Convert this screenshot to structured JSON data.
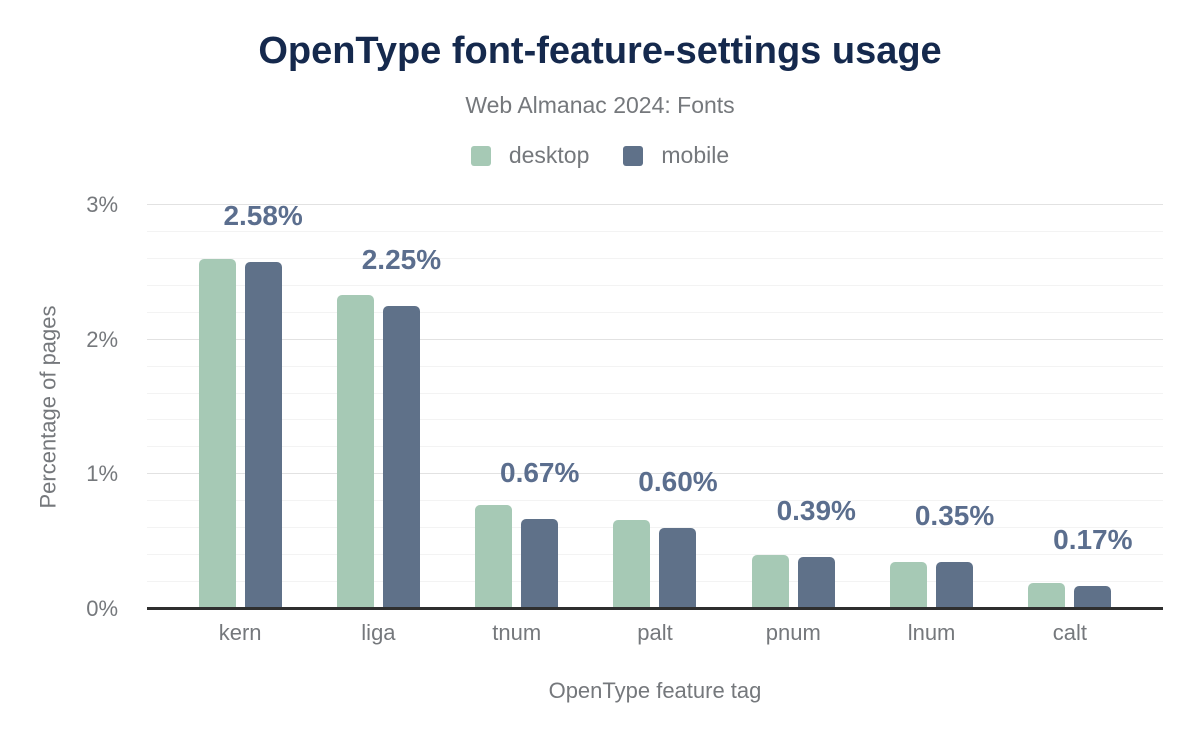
{
  "chart_data": {
    "type": "bar",
    "title": "OpenType font-feature-settings usage",
    "subtitle": "Web Almanac 2024: Fonts",
    "xlabel": "OpenType feature tag",
    "ylabel": "Percentage of pages",
    "categories": [
      "kern",
      "liga",
      "tnum",
      "palt",
      "pnum",
      "lnum",
      "calt"
    ],
    "series": [
      {
        "name": "desktop",
        "color": "#a6c9b5",
        "values": [
          2.6,
          2.33,
          0.77,
          0.66,
          0.4,
          0.35,
          0.19
        ]
      },
      {
        "name": "mobile",
        "color": "#5f7189",
        "values": [
          2.58,
          2.25,
          0.67,
          0.6,
          0.39,
          0.35,
          0.17
        ]
      }
    ],
    "value_labels": [
      "2.58%",
      "2.25%",
      "0.67%",
      "0.60%",
      "0.39%",
      "0.35%",
      "0.17%"
    ],
    "value_labels_series": "mobile",
    "y_ticks": [
      {
        "label": "0%",
        "value": 0
      },
      {
        "label": "1%",
        "value": 1
      },
      {
        "label": "2%",
        "value": 2
      },
      {
        "label": "3%",
        "value": 3
      }
    ],
    "ylim": [
      0,
      3
    ],
    "grid": true,
    "minor_grid_step": 0.2,
    "major_grid_step": 1,
    "legend_position": "top"
  },
  "colors": {
    "title": "#15294d",
    "subtitle_and_axis_text": "#75787c",
    "value_label": "#5b6e8e",
    "desktop_bar": "#a6c9b5",
    "mobile_bar": "#5f7189",
    "axis_line": "#2f2f2f",
    "grid_major": "#e2e2e2",
    "grid_minor": "#f3f3f3",
    "background": "#ffffff"
  }
}
